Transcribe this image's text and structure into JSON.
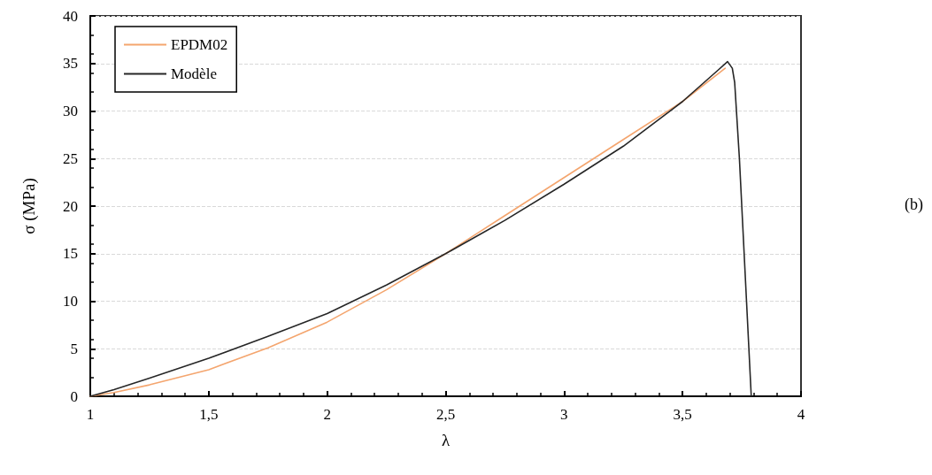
{
  "chart_data": {
    "type": "line",
    "xlabel": "λ",
    "ylabel": "σ (MPa)",
    "annotations": [
      "(b)"
    ],
    "xlim": [
      1,
      4
    ],
    "xticks": [
      1,
      {
        "value": 1.5,
        "label": "1,5"
      },
      2,
      {
        "value": 2.5,
        "label": "2,5"
      },
      3,
      {
        "value": 3.5,
        "label": "3,5"
      },
      4
    ],
    "ylim": [
      0,
      40
    ],
    "yticks": [
      0,
      5,
      10,
      15,
      20,
      25,
      30,
      35,
      40
    ],
    "grid": "y",
    "legend": "top left",
    "marker": "none",
    "line_style": "solid",
    "series": [
      {
        "name": "EPDM02",
        "color": "#f4a56e",
        "x": [
          1,
          1.1,
          1.25,
          1.5,
          1.75,
          2,
          2.25,
          2.5,
          2.75,
          3,
          3.25,
          3.5,
          3.68
        ],
        "values": [
          0,
          0.4,
          1.2,
          2.8,
          5.1,
          7.8,
          11.2,
          15,
          19,
          23,
          27,
          31,
          34.5
        ]
      },
      {
        "name": "Modèle",
        "color": "#262626",
        "x": [
          1,
          1.1,
          1.25,
          1.5,
          1.75,
          2,
          2.25,
          2.5,
          2.75,
          3,
          3.25,
          3.5,
          3.65,
          3.69,
          3.71,
          3.72,
          3.74,
          3.77,
          3.79
        ],
        "values": [
          0,
          0.7,
          1.9,
          4,
          6.3,
          8.7,
          11.7,
          15,
          18.5,
          22.3,
          26.3,
          31,
          34.3,
          35.2,
          34.5,
          33,
          25,
          10,
          0
        ]
      }
    ]
  }
}
